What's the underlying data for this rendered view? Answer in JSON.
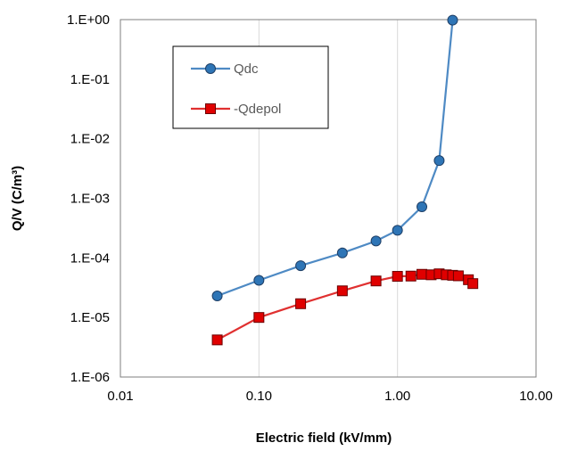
{
  "chart_data": {
    "type": "scatter",
    "xscale": "log",
    "yscale": "log",
    "xlim": [
      0.01,
      10
    ],
    "ylim": [
      1e-06,
      1
    ],
    "xlabel": "Electric field (kV/mm)",
    "ylabel": "Q/V (C/m³)",
    "x_ticks": [
      0.01,
      0.1,
      1,
      10
    ],
    "x_tick_labels": [
      "0.01",
      "0.10",
      "1.00",
      "10.00"
    ],
    "y_ticks": [
      1e-06,
      1e-05,
      0.0001,
      0.001,
      0.01,
      0.1,
      1
    ],
    "y_tick_labels": [
      "1.E-06",
      "1.E-05",
      "1.E-04",
      "1.E-03",
      "1.E-02",
      "1.E-01",
      "1.E+00"
    ],
    "grid": {
      "vertical": true,
      "horizontal": false
    },
    "legend": {
      "placement": "top-left inside plot"
    },
    "series": [
      {
        "name": "Qdc",
        "color": "#4e8ac4",
        "marker": "circle",
        "marker_fill": "#2e75b6",
        "x": [
          0.05,
          0.1,
          0.2,
          0.4,
          0.7,
          1.0,
          1.5,
          2.0,
          2.5
        ],
        "y": [
          2.3e-05,
          4.2e-05,
          7.4e-05,
          0.000121,
          0.000192,
          0.00029,
          0.00072,
          0.0043,
          0.98
        ]
      },
      {
        "name": "-Qdepol",
        "color": "#e03030",
        "marker": "square",
        "marker_fill": "#e00000",
        "x": [
          0.05,
          0.1,
          0.2,
          0.4,
          0.7,
          1.0,
          1.25,
          1.5,
          1.75,
          2.0,
          2.25,
          2.5,
          2.75,
          3.25,
          3.5
        ],
        "y": [
          4.2e-06,
          1e-05,
          1.7e-05,
          2.8e-05,
          4.1e-05,
          4.9e-05,
          4.95e-05,
          5.3e-05,
          5.2e-05,
          5.4e-05,
          5.2e-05,
          5.1e-05,
          5e-05,
          4.3e-05,
          3.7e-05
        ]
      }
    ]
  }
}
